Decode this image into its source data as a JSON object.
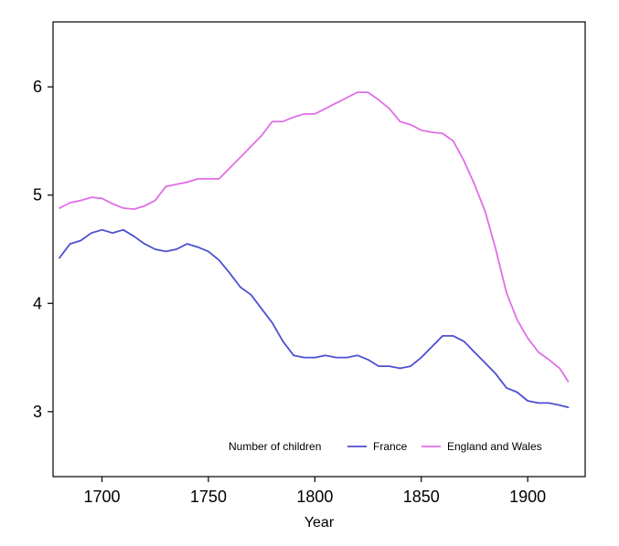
{
  "chart_data": {
    "type": "line",
    "title": "",
    "xlabel": "Year",
    "ylabel": "",
    "xlim": [
      1677,
      1927
    ],
    "ylim": [
      2.4,
      6.6
    ],
    "xticks": [
      1700,
      1750,
      1800,
      1850,
      1900
    ],
    "yticks": [
      3,
      4,
      5,
      6
    ],
    "grid": false,
    "legend": {
      "title": "Number of children",
      "placement": "bottom-right"
    },
    "series": [
      {
        "name": "France",
        "color": "#4b4fd0",
        "x": [
          1680,
          1685,
          1690,
          1695,
          1700,
          1705,
          1710,
          1715,
          1720,
          1725,
          1730,
          1735,
          1740,
          1745,
          1750,
          1755,
          1760,
          1765,
          1770,
          1775,
          1780,
          1785,
          1790,
          1795,
          1800,
          1805,
          1810,
          1815,
          1820,
          1825,
          1830,
          1835,
          1840,
          1845,
          1850,
          1855,
          1860,
          1865,
          1870,
          1875,
          1880,
          1885,
          1890,
          1895,
          1900,
          1905,
          1910,
          1915,
          1919
        ],
        "values": [
          4.42,
          4.55,
          4.58,
          4.65,
          4.68,
          4.65,
          4.68,
          4.62,
          4.55,
          4.5,
          4.48,
          4.5,
          4.55,
          4.52,
          4.48,
          4.4,
          4.28,
          4.15,
          4.08,
          3.95,
          3.82,
          3.65,
          3.52,
          3.5,
          3.5,
          3.52,
          3.5,
          3.5,
          3.52,
          3.48,
          3.42,
          3.42,
          3.4,
          3.42,
          3.5,
          3.6,
          3.7,
          3.7,
          3.65,
          3.55,
          3.45,
          3.35,
          3.22,
          3.18,
          3.1,
          3.08,
          3.08,
          3.06,
          3.04
        ]
      },
      {
        "name": "England and Wales",
        "color": "#e06ee6",
        "x": [
          1680,
          1685,
          1690,
          1695,
          1700,
          1705,
          1710,
          1715,
          1720,
          1725,
          1730,
          1735,
          1740,
          1745,
          1750,
          1755,
          1760,
          1765,
          1770,
          1775,
          1780,
          1785,
          1790,
          1795,
          1800,
          1805,
          1810,
          1815,
          1820,
          1825,
          1830,
          1835,
          1840,
          1845,
          1850,
          1855,
          1860,
          1865,
          1870,
          1875,
          1880,
          1885,
          1890,
          1895,
          1900,
          1905,
          1910,
          1915,
          1919
        ],
        "values": [
          4.88,
          4.93,
          4.95,
          4.98,
          4.97,
          4.92,
          4.88,
          4.87,
          4.9,
          4.95,
          5.08,
          5.1,
          5.12,
          5.15,
          5.15,
          5.15,
          5.25,
          5.35,
          5.45,
          5.55,
          5.68,
          5.68,
          5.72,
          5.75,
          5.75,
          5.8,
          5.85,
          5.9,
          5.95,
          5.95,
          5.88,
          5.8,
          5.68,
          5.65,
          5.6,
          5.58,
          5.57,
          5.5,
          5.32,
          5.1,
          4.85,
          4.5,
          4.1,
          3.85,
          3.68,
          3.55,
          3.48,
          3.4,
          3.28
        ]
      }
    ]
  }
}
